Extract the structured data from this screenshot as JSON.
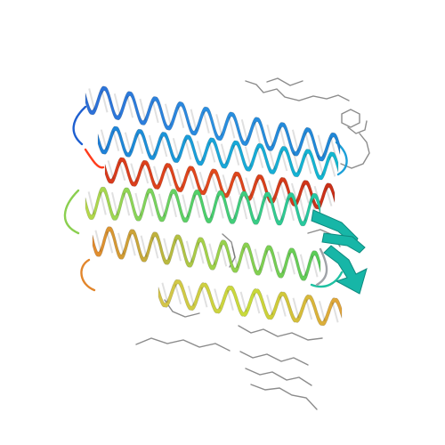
{
  "scene": {
    "subject": "protein-ribbon",
    "background_color": "#ffffff",
    "ligand_color": "#8c8c8c"
  },
  "helices": [
    {
      "name": "helix-1",
      "colors": [
        "#2d6fd8",
        "#2a8fe0",
        "#1f86d6"
      ]
    },
    {
      "name": "helix-2",
      "colors": [
        "#1f7fd8",
        "#18a6d9",
        "#13b8d0"
      ]
    },
    {
      "name": "helix-3",
      "colors": [
        "#d83a1c",
        "#e24a1d",
        "#c92e18"
      ]
    },
    {
      "name": "helix-4",
      "colors": [
        "#b7d84a",
        "#4ccf6a",
        "#21c7a6"
      ]
    },
    {
      "name": "helix-5",
      "colors": [
        "#e38a2e",
        "#a3d24a",
        "#57cc5a"
      ]
    },
    {
      "name": "helix-6",
      "colors": [
        "#d4c34a",
        "#c8dc3a",
        "#e1a33a"
      ]
    }
  ],
  "beta_sheet": {
    "color": "#17b6a7"
  }
}
